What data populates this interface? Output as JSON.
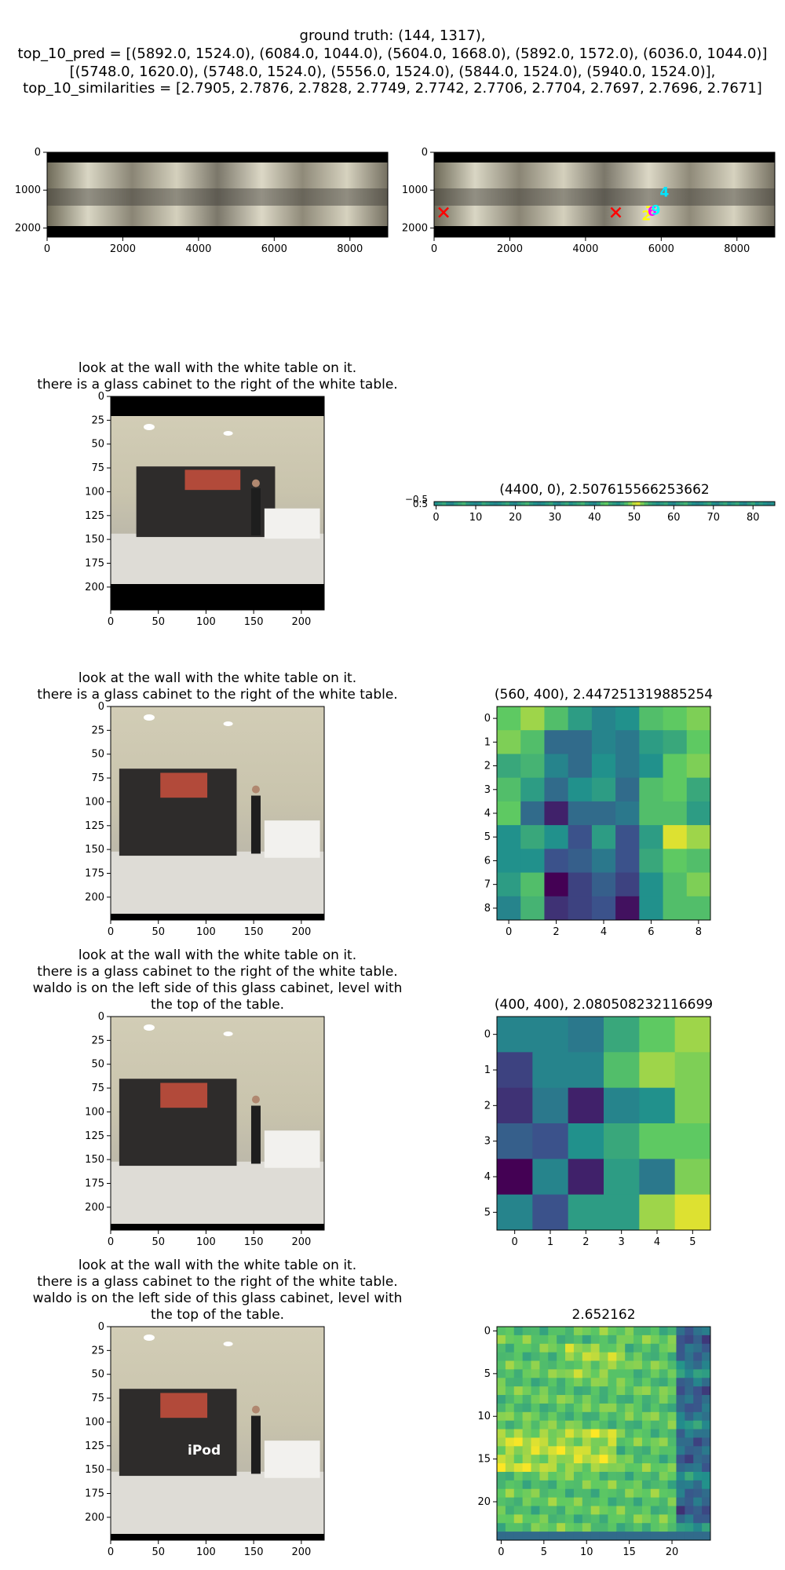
{
  "header": {
    "lines": [
      "ground truth: (144, 1317),",
      "top_10_pred = [(5892.0, 1524.0), (6084.0, 1044.0), (5604.0, 1668.0), (5892.0, 1572.0), (6036.0, 1044.0)]",
      "[(5748.0, 1620.0), (5748.0, 1524.0), (5556.0, 1524.0), (5844.0, 1524.0), (5940.0, 1524.0)],",
      "top_10_similarities = [2.7905, 2.7876, 2.7828, 2.7749, 2.7742, 2.7706, 2.7704, 2.7697, 2.7696, 2.7671]"
    ]
  },
  "panorama_left": {
    "xticks": [
      "0",
      "2000",
      "4000",
      "6000",
      "8000"
    ],
    "yticks": [
      "0",
      "1000",
      "2000"
    ]
  },
  "panorama_right": {
    "xticks": [
      "0",
      "2000",
      "4000",
      "6000",
      "8000"
    ],
    "yticks": [
      "0",
      "1000",
      "2000"
    ],
    "markers": [
      {
        "label": "4",
        "x": 6084,
        "y": 1044,
        "color": "#00e5ff"
      },
      {
        "label": "2",
        "x": 5604,
        "y": 1668,
        "color": "#ffff00"
      },
      {
        "label": "7",
        "x": 5700,
        "y": 1560,
        "color": "#ffff00"
      },
      {
        "label": "6",
        "x": 5760,
        "y": 1560,
        "color": "#ff00ff"
      },
      {
        "label": "9",
        "x": 5860,
        "y": 1520,
        "color": "#00ffff"
      }
    ],
    "crosses": [
      {
        "x": 250,
        "y": 1590
      },
      {
        "x": 4800,
        "y": 1590
      }
    ]
  },
  "rows": [
    {
      "caption": [
        "look at the wall with the white table on it.",
        "there is a glass cabinet to the right of the white table."
      ],
      "img_ticks_x": [
        "0",
        "50",
        "100",
        "150",
        "200"
      ],
      "img_ticks_y": [
        "0",
        "25",
        "50",
        "75",
        "100",
        "125",
        "150",
        "175",
        "200"
      ],
      "right_title": "(4400, 0), 2.507615566253662",
      "right_yticks": [
        "−0.5",
        "0.5"
      ],
      "right_xticks": [
        "0",
        "10",
        "20",
        "30",
        "40",
        "50",
        "60",
        "70",
        "80"
      ]
    },
    {
      "caption": [
        "look at the wall with the white table on it.",
        "there is a glass cabinet to the right of the white table."
      ],
      "img_ticks_x": [
        "0",
        "50",
        "100",
        "150",
        "200"
      ],
      "img_ticks_y": [
        "0",
        "25",
        "50",
        "75",
        "100",
        "125",
        "150",
        "175",
        "200"
      ],
      "right_title": "(560, 400), 2.447251319885254",
      "right_xticks": [
        "0",
        "2",
        "4",
        "6",
        "8"
      ],
      "right_yticks": [
        "0",
        "1",
        "2",
        "3",
        "4",
        "5",
        "6",
        "7",
        "8"
      ]
    },
    {
      "caption": [
        "look at the wall with the white table on it.",
        "there is a glass cabinet to the right of the white table.",
        "waldo is on the left side of this glass cabinet, level with",
        "the top of the table."
      ],
      "img_ticks_x": [
        "0",
        "50",
        "100",
        "150",
        "200"
      ],
      "img_ticks_y": [
        "0",
        "25",
        "50",
        "75",
        "100",
        "125",
        "150",
        "175",
        "200"
      ],
      "right_title": "(400, 400), 2.080508232116699",
      "right_xticks": [
        "0",
        "1",
        "2",
        "3",
        "4",
        "5"
      ],
      "right_yticks": [
        "0",
        "1",
        "2",
        "3",
        "4",
        "5"
      ]
    },
    {
      "caption": [
        "look at the wall with the white table on it.",
        "there is a glass cabinet to the right of the white table.",
        "waldo is on the left side of this glass cabinet, level with",
        "the top of the table."
      ],
      "img_ticks_x": [
        "0",
        "50",
        "100",
        "150",
        "200"
      ],
      "img_ticks_y": [
        "0",
        "25",
        "50",
        "75",
        "100",
        "125",
        "150",
        "175",
        "200"
      ],
      "overlay_text": "iPod",
      "right_title": "2.652162",
      "right_xticks": [
        "0",
        "5",
        "10",
        "15",
        "20"
      ],
      "right_yticks": [
        "0",
        "5",
        "10",
        "15",
        "20"
      ]
    }
  ],
  "chart_data": [
    {
      "type": "heatmap",
      "title": "(560, 400), 2.447251319885254",
      "rows": 9,
      "cols": 9,
      "values": [
        [
          0.75,
          0.85,
          0.7,
          0.55,
          0.45,
          0.5,
          0.7,
          0.75,
          0.8
        ],
        [
          0.8,
          0.7,
          0.35,
          0.35,
          0.45,
          0.4,
          0.55,
          0.6,
          0.75
        ],
        [
          0.6,
          0.65,
          0.45,
          0.35,
          0.5,
          0.4,
          0.5,
          0.75,
          0.8
        ],
        [
          0.7,
          0.55,
          0.35,
          0.5,
          0.55,
          0.35,
          0.7,
          0.75,
          0.6
        ],
        [
          0.75,
          0.35,
          0.1,
          0.35,
          0.35,
          0.4,
          0.7,
          0.7,
          0.55
        ],
        [
          0.5,
          0.6,
          0.5,
          0.25,
          0.55,
          0.25,
          0.55,
          0.95,
          0.85
        ],
        [
          0.5,
          0.5,
          0.25,
          0.3,
          0.4,
          0.25,
          0.6,
          0.75,
          0.7
        ],
        [
          0.55,
          0.7,
          0.0,
          0.2,
          0.3,
          0.2,
          0.5,
          0.7,
          0.8
        ],
        [
          0.45,
          0.65,
          0.15,
          0.2,
          0.25,
          0.05,
          0.5,
          0.7,
          0.7
        ]
      ]
    },
    {
      "type": "heatmap",
      "title": "(400, 400), 2.080508232116699",
      "rows": 6,
      "cols": 6,
      "values": [
        [
          0.45,
          0.45,
          0.4,
          0.6,
          0.75,
          0.85
        ],
        [
          0.2,
          0.45,
          0.45,
          0.7,
          0.85,
          0.8
        ],
        [
          0.15,
          0.4,
          0.1,
          0.45,
          0.5,
          0.8
        ],
        [
          0.3,
          0.25,
          0.5,
          0.6,
          0.75,
          0.75
        ],
        [
          0.0,
          0.45,
          0.1,
          0.55,
          0.4,
          0.8
        ],
        [
          0.45,
          0.25,
          0.55,
          0.55,
          0.85,
          0.95
        ]
      ]
    },
    {
      "type": "heatmap",
      "title": "(4400, 0), 2.507615566253662",
      "rows": 1,
      "cols": 86,
      "values": [
        0.5,
        0.55,
        0.6,
        0.5,
        0.45,
        0.55,
        0.6,
        0.65,
        0.55,
        0.5,
        0.45,
        0.5,
        0.6,
        0.55,
        0.5,
        0.45,
        0.5,
        0.55,
        0.6,
        0.5,
        0.45,
        0.55,
        0.6,
        0.65,
        0.55,
        0.5,
        0.45,
        0.5,
        0.55,
        0.6,
        0.5,
        0.45,
        0.55,
        0.6,
        0.5,
        0.55,
        0.6,
        0.65,
        0.55,
        0.5,
        0.45,
        0.55,
        0.7,
        0.75,
        0.6,
        0.55,
        0.5,
        0.6,
        0.7,
        0.8,
        0.9,
        0.95,
        0.8,
        0.7,
        0.6,
        0.55,
        0.5,
        0.55,
        0.6,
        0.5,
        0.45,
        0.55,
        0.6,
        0.65,
        0.55,
        0.5,
        0.45,
        0.5,
        0.55,
        0.6,
        0.5,
        0.45,
        0.55,
        0.6,
        0.5,
        0.55,
        0.6,
        0.5,
        0.45,
        0.55,
        0.6,
        0.5,
        0.55,
        0.5,
        0.45,
        0.5
      ]
    }
  ]
}
